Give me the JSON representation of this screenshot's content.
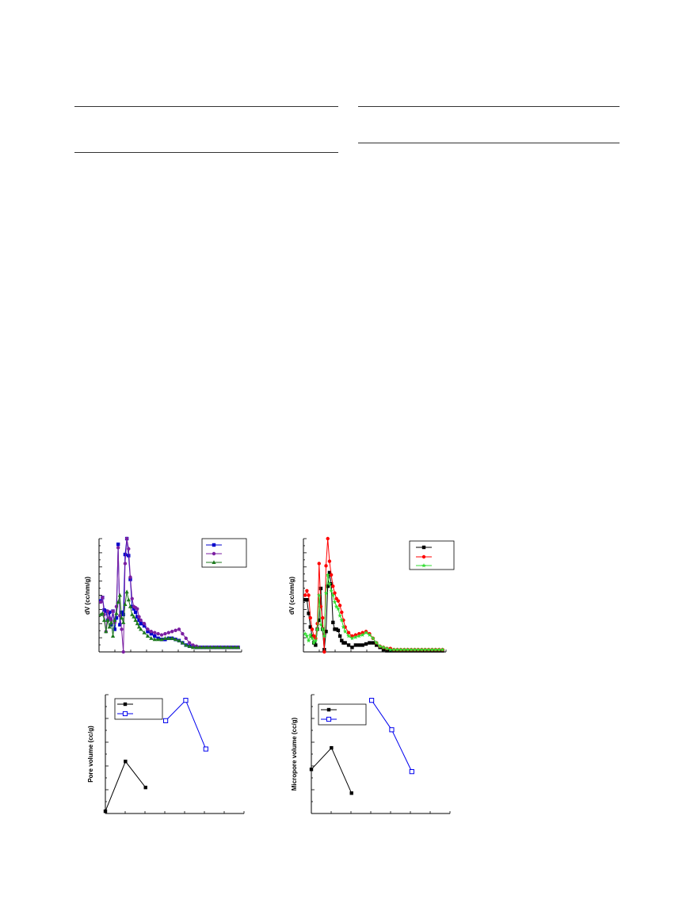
{
  "tables": [
    {
      "name": "table-left"
    },
    {
      "name": "table-right"
    }
  ],
  "chart_data": [
    {
      "type": "line",
      "ylabel": "dV (cc/nm/g)",
      "legend": "top-right",
      "series": [
        {
          "color": "#0000cc",
          "marker": "square",
          "x": [
            1,
            2,
            3,
            4,
            5,
            6,
            7,
            8,
            9,
            10,
            11,
            12,
            13,
            14,
            15,
            16,
            17,
            18,
            19,
            20,
            21,
            22,
            23,
            24,
            26,
            28,
            30,
            32,
            34,
            36,
            38,
            40,
            42,
            44,
            46,
            48,
            50,
            52,
            54,
            56,
            58,
            60,
            62,
            64,
            66,
            68,
            70,
            72,
            74,
            76,
            78,
            80
          ],
          "y": [
            45,
            48,
            37,
            36,
            28,
            35,
            24,
            36,
            20,
            30,
            95,
            24,
            35,
            33,
            86,
            100,
            85,
            64,
            40,
            38,
            35,
            31,
            28,
            25,
            23,
            18,
            16,
            14,
            12,
            11,
            11,
            12,
            12,
            11,
            10,
            8,
            6,
            5,
            5,
            4,
            4,
            4,
            4,
            4,
            4,
            4,
            4,
            4,
            4,
            4,
            4,
            4
          ]
        },
        {
          "color": "#7b1fa2",
          "marker": "circle",
          "x": [
            1,
            2,
            3,
            4,
            5,
            6,
            7,
            8,
            9,
            10,
            11,
            12,
            13,
            14,
            15,
            16,
            17,
            18,
            19,
            20,
            21,
            22,
            23,
            24,
            26,
            28,
            30,
            32,
            34,
            36,
            38,
            40,
            42,
            44,
            46,
            48,
            50,
            52,
            54,
            56,
            58,
            60,
            62,
            64,
            66,
            68,
            70,
            72,
            74,
            76,
            78,
            80
          ],
          "y": [
            44,
            48,
            33,
            18,
            36,
            30,
            28,
            36,
            26,
            40,
            92,
            32,
            20,
            0,
            78,
            100,
            91,
            66,
            47,
            40,
            39,
            38,
            31,
            28,
            25,
            20,
            18,
            17,
            16,
            15,
            16,
            17,
            18,
            19,
            20,
            16,
            12,
            8,
            6,
            5,
            4,
            4,
            4,
            4,
            4,
            4,
            4,
            4,
            4,
            4,
            4,
            4
          ]
        },
        {
          "color": "#1e7a1e",
          "marker": "triangle",
          "x": [
            1,
            2,
            3,
            4,
            5,
            6,
            7,
            8,
            9,
            10,
            11,
            12,
            13,
            14,
            15,
            16,
            17,
            18,
            19,
            20,
            21,
            22,
            23,
            24,
            26,
            28,
            30,
            32,
            34,
            36,
            38,
            40,
            42,
            44,
            46,
            48,
            50,
            52,
            54,
            56,
            58,
            60,
            62,
            64,
            66,
            68,
            70,
            72,
            74,
            76,
            78,
            80
          ],
          "y": [
            33,
            34,
            28,
            18,
            28,
            22,
            26,
            14,
            28,
            34,
            44,
            50,
            30,
            26,
            42,
            53,
            46,
            40,
            33,
            31,
            28,
            25,
            22,
            20,
            17,
            14,
            12,
            11,
            11,
            11,
            12,
            12,
            12,
            11,
            10,
            8,
            6,
            5,
            4,
            4,
            4,
            4,
            4,
            4,
            4,
            4,
            4,
            4,
            4,
            4,
            4,
            4
          ]
        }
      ]
    },
    {
      "type": "line",
      "ylabel": "dV (cc/nm/g)",
      "legend": "top-right",
      "series": [
        {
          "color": "#000000",
          "marker": "square",
          "x": [
            1,
            2,
            3,
            4,
            5,
            6,
            7,
            8,
            9,
            10,
            11,
            12,
            13,
            14,
            15,
            16,
            17,
            18,
            19,
            20,
            21,
            22,
            23,
            24,
            26,
            28,
            30,
            32,
            34,
            36,
            38,
            40,
            42,
            44,
            46,
            48,
            50,
            52,
            54,
            56,
            58,
            60,
            62,
            64,
            66,
            68,
            70,
            72,
            74,
            76,
            78,
            80
          ],
          "y": [
            46,
            46,
            34,
            22,
            14,
            8,
            6,
            20,
            28,
            56,
            20,
            2,
            18,
            58,
            70,
            60,
            26,
            20,
            20,
            19,
            14,
            10,
            8,
            8,
            6,
            4,
            6,
            6,
            6,
            7,
            8,
            8,
            6,
            4,
            2,
            1,
            1,
            1,
            1,
            1,
            1,
            1,
            1,
            1,
            1,
            1,
            1,
            1,
            1,
            1,
            1,
            1
          ]
        },
        {
          "color": "#ff0000",
          "marker": "circle",
          "x": [
            1,
            2,
            3,
            4,
            5,
            6,
            7,
            8,
            9,
            10,
            11,
            12,
            13,
            14,
            15,
            16,
            17,
            18,
            19,
            20,
            21,
            22,
            23,
            24,
            26,
            28,
            30,
            32,
            34,
            36,
            38,
            40,
            42,
            44,
            46,
            48,
            50,
            52,
            54,
            56,
            58,
            60,
            62,
            64,
            66,
            68,
            70,
            72,
            74,
            76,
            78,
            80
          ],
          "y": [
            50,
            54,
            50,
            30,
            20,
            14,
            12,
            25,
            78,
            40,
            30,
            0,
            76,
            100,
            80,
            68,
            58,
            52,
            47,
            45,
            41,
            35,
            28,
            22,
            17,
            14,
            15,
            16,
            17,
            18,
            16,
            12,
            8,
            5,
            4,
            3,
            3,
            2,
            2,
            2,
            2,
            2,
            2,
            2,
            2,
            2,
            2,
            2,
            2,
            2,
            2,
            2
          ]
        },
        {
          "color": "#33dd33",
          "marker": "star",
          "x": [
            1,
            2,
            3,
            4,
            5,
            6,
            7,
            8,
            9,
            10,
            11,
            12,
            13,
            14,
            15,
            16,
            17,
            18,
            19,
            20,
            21,
            22,
            23,
            24,
            26,
            28,
            30,
            32,
            34,
            36,
            38,
            40,
            42,
            44,
            46,
            48,
            50,
            52,
            54,
            56,
            58,
            60,
            62,
            64,
            66,
            68,
            70,
            72,
            74,
            76,
            78,
            80
          ],
          "y": [
            16,
            14,
            10,
            15,
            12,
            8,
            10,
            20,
            50,
            24,
            20,
            14,
            52,
            68,
            60,
            54,
            50,
            44,
            40,
            38,
            32,
            28,
            22,
            18,
            14,
            12,
            13,
            14,
            15,
            17,
            15,
            12,
            8,
            5,
            4,
            3,
            2,
            2,
            2,
            2,
            2,
            2,
            2,
            2,
            2,
            2,
            2,
            2,
            2,
            2,
            2,
            2
          ]
        }
      ]
    },
    {
      "type": "line",
      "ylabel": "Pore volume (cc/g)",
      "legend": "top-left",
      "series": [
        {
          "color": "#000000",
          "marker": "square-filled",
          "x": [
            0,
            1,
            2
          ],
          "y": [
            0.02,
            0.46,
            0.23
          ]
        },
        {
          "color": "#0000ee",
          "marker": "square-open",
          "x": [
            3,
            4,
            5
          ],
          "y": [
            0.82,
            1.0,
            0.57
          ]
        }
      ]
    },
    {
      "type": "line",
      "ylabel": "Micropore volume (cc/g)",
      "legend": "top-left",
      "series": [
        {
          "color": "#000000",
          "marker": "square-filled",
          "x": [
            0,
            1,
            2
          ],
          "y": [
            0.39,
            0.58,
            0.18
          ]
        },
        {
          "color": "#0000ee",
          "marker": "square-open",
          "x": [
            3,
            4,
            5
          ],
          "y": [
            1.0,
            0.74,
            0.37
          ]
        }
      ]
    }
  ]
}
